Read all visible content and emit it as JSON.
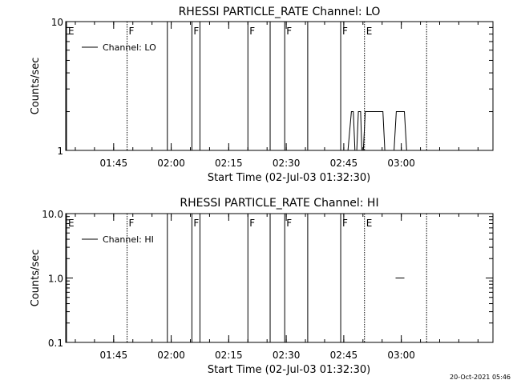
{
  "footer": {
    "timestamp": "20-Oct-2021 05:46"
  },
  "chart_data": [
    {
      "type": "line",
      "title": "RHESSI PARTICLE_RATE Channel: LO",
      "xlabel": "Start Time (02-Jul-03 01:32:30)",
      "ylabel": "Counts/sec",
      "yscale": "log",
      "ylim": [
        1,
        10
      ],
      "yticks": [
        {
          "v": 1,
          "label": "1"
        },
        {
          "v": 10,
          "label": "10"
        }
      ],
      "xlim_min": [
        0,
        111.4
      ],
      "xticks": [
        {
          "v": 12.5,
          "label": "01:45"
        },
        {
          "v": 27.5,
          "label": "02:00"
        },
        {
          "v": 42.5,
          "label": "02:15"
        },
        {
          "v": 57.5,
          "label": "02:30"
        },
        {
          "v": 72.5,
          "label": "02:45"
        },
        {
          "v": 87.5,
          "label": "03:00"
        }
      ],
      "legend": {
        "label": "Channel: LO",
        "placement": "top-left"
      },
      "series": [
        {
          "x": [
            72.6,
            73.6,
            74.5,
            75.0,
            75.4,
            75.9,
            76.3,
            76.9,
            77.2,
            77.6,
            78.1,
            78.6,
            82.7,
            83.2,
            85.6,
            86.2,
            88.3,
            88.9,
            89.5
          ],
          "y": [
            1,
            1,
            2,
            2,
            1,
            1,
            2,
            2,
            1,
            1,
            2,
            2,
            2,
            1,
            1,
            2,
            2,
            1,
            1
          ]
        }
      ],
      "markers": [
        {
          "x": 16.0,
          "label": "F",
          "style": "dotted"
        },
        {
          "x": 0.2,
          "label": "E",
          "style": "solid"
        },
        {
          "x": 26.5,
          "label": "",
          "style": "solid"
        },
        {
          "x": 32.9,
          "label": "F",
          "style": "solid"
        },
        {
          "x": 35.0,
          "label": "",
          "style": "solid"
        },
        {
          "x": 47.5,
          "label": "F",
          "style": "solid"
        },
        {
          "x": 53.3,
          "label": "",
          "style": "solid"
        },
        {
          "x": 57.1,
          "label": "F",
          "style": "solid"
        },
        {
          "x": 63.1,
          "label": "",
          "style": "solid"
        },
        {
          "x": 71.7,
          "label": "F",
          "style": "solid"
        },
        {
          "x": 77.9,
          "label": "E",
          "style": "dotted"
        },
        {
          "x": 94.1,
          "label": "",
          "style": "dotted"
        }
      ]
    },
    {
      "type": "line",
      "title": "RHESSI PARTICLE_RATE Channel: HI",
      "xlabel": "Start Time (02-Jul-03 01:32:30)",
      "ylabel": "Counts/sec",
      "yscale": "log",
      "ylim": [
        0.1,
        10
      ],
      "yticks": [
        {
          "v": 0.1,
          "label": "0.1"
        },
        {
          "v": 1,
          "label": "1.0"
        },
        {
          "v": 10,
          "label": "10.0"
        }
      ],
      "xlim_min": [
        0,
        111.4
      ],
      "xticks": [
        {
          "v": 12.5,
          "label": "01:45"
        },
        {
          "v": 27.5,
          "label": "02:00"
        },
        {
          "v": 42.5,
          "label": "02:15"
        },
        {
          "v": 57.5,
          "label": "02:30"
        },
        {
          "v": 72.5,
          "label": "02:45"
        },
        {
          "v": 87.5,
          "label": "03:00"
        }
      ],
      "legend": {
        "label": "Channel: HI",
        "placement": "top-left"
      },
      "series": [
        {
          "x": [
            86.0,
            88.3
          ],
          "y": [
            1,
            1
          ]
        }
      ],
      "markers": [
        {
          "x": 16.0,
          "label": "F",
          "style": "dotted"
        },
        {
          "x": 0.2,
          "label": "E",
          "style": "solid"
        },
        {
          "x": 26.5,
          "label": "",
          "style": "solid"
        },
        {
          "x": 32.9,
          "label": "F",
          "style": "solid"
        },
        {
          "x": 35.0,
          "label": "",
          "style": "solid"
        },
        {
          "x": 47.5,
          "label": "F",
          "style": "solid"
        },
        {
          "x": 53.3,
          "label": "",
          "style": "solid"
        },
        {
          "x": 57.1,
          "label": "F",
          "style": "solid"
        },
        {
          "x": 63.1,
          "label": "",
          "style": "solid"
        },
        {
          "x": 71.7,
          "label": "F",
          "style": "solid"
        },
        {
          "x": 77.9,
          "label": "E",
          "style": "dotted"
        },
        {
          "x": 94.1,
          "label": "",
          "style": "dotted"
        }
      ]
    }
  ]
}
